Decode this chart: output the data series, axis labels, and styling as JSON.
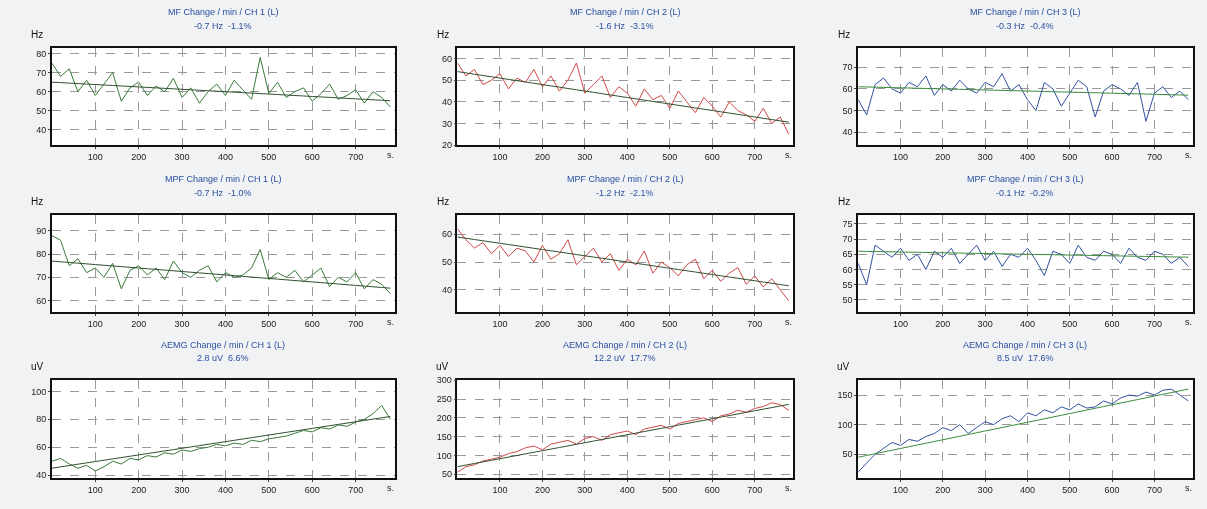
{
  "chart_data": [
    {
      "type": "line",
      "title": "MF Change / min / CH 1 (L)",
      "subtitle": "-0.7 Hz  -1.1%",
      "ylabel": "Hz",
      "xlabel": "s.",
      "x": [
        0,
        20,
        40,
        60,
        80,
        100,
        120,
        140,
        160,
        180,
        200,
        220,
        240,
        260,
        280,
        300,
        320,
        340,
        360,
        380,
        400,
        420,
        440,
        460,
        480,
        500,
        520,
        540,
        560,
        580,
        600,
        620,
        640,
        660,
        680,
        700,
        720,
        740,
        760,
        780
      ],
      "series": [
        {
          "color": "#3a7a3a",
          "values": [
            75,
            68,
            72,
            60,
            66,
            58,
            64,
            70,
            55,
            62,
            65,
            58,
            63,
            60,
            67,
            57,
            62,
            54,
            60,
            64,
            58,
            66,
            61,
            56,
            78,
            59,
            65,
            57,
            60,
            62,
            55,
            59,
            64,
            56,
            58,
            61,
            54,
            60,
            57,
            52
          ]
        },
        {
          "type": "line",
          "color": "#2f4f2f",
          "values": [
            65,
            64.75,
            64.5,
            64.25,
            64,
            63.75,
            63.5,
            63.25,
            63,
            62.75,
            62.5,
            62.25,
            62,
            61.75,
            61.5,
            61.25,
            61,
            60.75,
            60.5,
            60.25,
            60,
            59.75,
            59.5,
            59.25,
            59,
            58.75,
            58.5,
            58.25,
            58,
            57.75,
            57.5,
            57.25,
            57,
            56.75,
            56.5,
            56.25,
            56,
            55.75,
            55.5,
            55.25
          ]
        }
      ],
      "xlim": [
        0,
        790
      ],
      "xticks": [
        100,
        200,
        300,
        400,
        500,
        600,
        700
      ],
      "ylim": [
        32,
        83
      ],
      "yticks": [
        40,
        50,
        60,
        70,
        80
      ],
      "grid": true
    },
    {
      "type": "line",
      "title": "MF Change / min / CH 2 (L)",
      "subtitle": "-1.6 Hz  -3.1%",
      "ylabel": "Hz",
      "xlabel": "s.",
      "x": [
        0,
        20,
        40,
        60,
        80,
        100,
        120,
        140,
        160,
        180,
        200,
        220,
        240,
        260,
        280,
        300,
        320,
        340,
        360,
        380,
        400,
        420,
        440,
        460,
        480,
        500,
        520,
        540,
        560,
        580,
        600,
        620,
        640,
        660,
        680,
        700,
        720,
        740,
        760,
        780
      ],
      "series": [
        {
          "color": "#d04848",
          "values": [
            58,
            52,
            55,
            48,
            50,
            53,
            46,
            51,
            49,
            55,
            47,
            52,
            45,
            50,
            58,
            44,
            48,
            52,
            42,
            47,
            44,
            38,
            46,
            41,
            43,
            37,
            45,
            40,
            35,
            42,
            38,
            33,
            40,
            36,
            34,
            31,
            37,
            30,
            33,
            25
          ]
        },
        {
          "type": "line",
          "color": "#2f4f2f",
          "values": [
            54,
            53.4,
            52.8,
            52.2,
            51.6,
            51,
            50.4,
            49.8,
            49.2,
            48.6,
            48,
            47.4,
            46.8,
            46.2,
            45.6,
            45,
            44.4,
            43.8,
            43.2,
            42.6,
            42,
            41.4,
            40.8,
            40.2,
            39.6,
            39,
            38.4,
            37.8,
            37.2,
            36.6,
            36,
            35.4,
            34.8,
            34.2,
            33.6,
            33,
            32.4,
            31.8,
            31.2,
            30.6
          ]
        }
      ],
      "xlim": [
        0,
        790
      ],
      "xticks": [
        100,
        200,
        300,
        400,
        500,
        600,
        700
      ],
      "ylim": [
        20,
        65
      ],
      "yticks": [
        20,
        30,
        40,
        50,
        60
      ],
      "grid": true
    },
    {
      "type": "line",
      "title": "MF Change / min / CH 3 (L)",
      "subtitle": "-0.3 Hz  -0.4%",
      "ylabel": "Hz",
      "xlabel": "s.",
      "x": [
        0,
        20,
        40,
        60,
        80,
        100,
        120,
        140,
        160,
        180,
        200,
        220,
        240,
        260,
        280,
        300,
        320,
        340,
        360,
        380,
        400,
        420,
        440,
        460,
        480,
        500,
        520,
        540,
        560,
        580,
        600,
        620,
        640,
        660,
        680,
        700,
        720,
        740,
        760,
        780
      ],
      "series": [
        {
          "color": "#3050a0",
          "values": [
            55,
            48,
            62,
            65,
            60,
            58,
            63,
            61,
            66,
            57,
            62,
            59,
            64,
            60,
            58,
            63,
            61,
            67,
            59,
            62,
            55,
            50,
            63,
            60,
            52,
            58,
            64,
            61,
            47,
            59,
            62,
            60,
            57,
            63,
            45,
            58,
            61,
            56,
            59,
            55
          ]
        },
        {
          "type": "line",
          "color": "#3a8a3a",
          "values": [
            61,
            60.9,
            60.8,
            60.7,
            60.6,
            60.5,
            60.4,
            60.3,
            60.2,
            60.1,
            60,
            59.9,
            59.8,
            59.7,
            59.6,
            59.5,
            59.4,
            59.3,
            59.2,
            59.1,
            59,
            58.9,
            58.8,
            58.7,
            58.6,
            58.5,
            58.4,
            58.3,
            58.2,
            58.1,
            58,
            57.9,
            57.8,
            57.7,
            57.6,
            57.5,
            57.4,
            57.3,
            57.2,
            57.1
          ]
        }
      ],
      "xlim": [
        0,
        790
      ],
      "xticks": [
        100,
        200,
        300,
        400,
        500,
        600,
        700
      ],
      "ylim": [
        34,
        79
      ],
      "yticks": [
        40,
        50,
        60,
        70
      ],
      "grid": true
    },
    {
      "type": "line",
      "title": "MPF Change / min / CH 1 (L)",
      "subtitle": "-0.7 Hz  -1.0%",
      "ylabel": "Hz",
      "xlabel": "s.",
      "x": [
        0,
        20,
        40,
        60,
        80,
        100,
        120,
        140,
        160,
        180,
        200,
        220,
        240,
        260,
        280,
        300,
        320,
        340,
        360,
        380,
        400,
        420,
        440,
        460,
        480,
        500,
        520,
        540,
        560,
        580,
        600,
        620,
        640,
        660,
        680,
        700,
        720,
        740,
        760,
        780
      ],
      "series": [
        {
          "color": "#3a7a3a",
          "values": [
            88,
            86,
            75,
            78,
            72,
            74,
            70,
            76,
            65,
            73,
            75,
            71,
            74,
            69,
            77,
            72,
            70,
            73,
            75,
            68,
            72,
            70,
            71,
            74,
            82,
            69,
            72,
            70,
            73,
            68,
            71,
            74,
            66,
            70,
            68,
            72,
            65,
            69,
            67,
            63
          ]
        },
        {
          "type": "line",
          "color": "#2f4f2f",
          "values": [
            77,
            76.7,
            76.4,
            76.1,
            75.8,
            75.5,
            75.2,
            74.9,
            74.6,
            74.3,
            74,
            73.7,
            73.4,
            73.1,
            72.8,
            72.5,
            72.2,
            71.9,
            71.6,
            71.3,
            71,
            70.7,
            70.4,
            70.1,
            69.8,
            69.5,
            69.2,
            68.9,
            68.6,
            68.3,
            68,
            67.7,
            67.4,
            67.1,
            66.8,
            66.5,
            66.2,
            65.9,
            65.6,
            65.3
          ]
        }
      ],
      "xlim": [
        0,
        790
      ],
      "xticks": [
        100,
        200,
        300,
        400,
        500,
        600,
        700
      ],
      "ylim": [
        55,
        97
      ],
      "yticks": [
        60,
        70,
        80,
        90
      ],
      "grid": true
    },
    {
      "type": "line",
      "title": "MPF Change / min / CH 2 (L)",
      "subtitle": "-1.2 Hz  -2.1%",
      "ylabel": "Hz",
      "xlabel": "s.",
      "x": [
        0,
        20,
        40,
        60,
        80,
        100,
        120,
        140,
        160,
        180,
        200,
        220,
        240,
        260,
        280,
        300,
        320,
        340,
        360,
        380,
        400,
        420,
        440,
        460,
        480,
        500,
        520,
        540,
        560,
        580,
        600,
        620,
        640,
        660,
        680,
        700,
        720,
        740,
        760,
        780
      ],
      "series": [
        {
          "color": "#d04848",
          "values": [
            62,
            58,
            55,
            57,
            53,
            56,
            52,
            55,
            54,
            50,
            56,
            51,
            53,
            58,
            49,
            52,
            55,
            50,
            53,
            47,
            51,
            49,
            54,
            46,
            50,
            48,
            45,
            49,
            51,
            44,
            47,
            43,
            46,
            48,
            42,
            45,
            41,
            44,
            40,
            36
          ]
        },
        {
          "type": "line",
          "color": "#2f4f2f",
          "values": [
            59,
            58.55,
            58.1,
            57.65,
            57.2,
            56.75,
            56.3,
            55.85,
            55.4,
            54.95,
            54.5,
            54.05,
            53.6,
            53.15,
            52.7,
            52.25,
            51.8,
            51.35,
            50.9,
            50.45,
            50,
            49.55,
            49.1,
            48.65,
            48.2,
            47.75,
            47.3,
            46.85,
            46.4,
            45.95,
            45.5,
            45.05,
            44.6,
            44.15,
            43.7,
            43.25,
            42.8,
            42.35,
            41.9,
            41.45
          ]
        }
      ],
      "xlim": [
        0,
        790
      ],
      "xticks": [
        100,
        200,
        300,
        400,
        500,
        600,
        700
      ],
      "ylim": [
        32,
        67
      ],
      "yticks": [
        40,
        50,
        60
      ],
      "grid": true
    },
    {
      "type": "line",
      "title": "MPF Change / min / CH 3 (L)",
      "subtitle": "-0.1 Hz  -0.2%",
      "ylabel": "Hz",
      "xlabel": "s.",
      "x": [
        0,
        20,
        40,
        60,
        80,
        100,
        120,
        140,
        160,
        180,
        200,
        220,
        240,
        260,
        280,
        300,
        320,
        340,
        360,
        380,
        400,
        420,
        440,
        460,
        480,
        500,
        520,
        540,
        560,
        580,
        600,
        620,
        640,
        660,
        680,
        700,
        720,
        740,
        760,
        780
      ],
      "series": [
        {
          "color": "#3050a0",
          "values": [
            62,
            55,
            68,
            66,
            64,
            67,
            63,
            65,
            60,
            66,
            64,
            67,
            62,
            65,
            68,
            63,
            66,
            61,
            65,
            64,
            67,
            63,
            58,
            66,
            65,
            62,
            68,
            64,
            63,
            66,
            65,
            62,
            67,
            64,
            63,
            66,
            65,
            62,
            64,
            61
          ]
        },
        {
          "type": "line",
          "color": "#3a8a3a",
          "values": [
            66,
            65.95,
            65.9,
            65.85,
            65.8,
            65.75,
            65.7,
            65.65,
            65.6,
            65.55,
            65.5,
            65.45,
            65.4,
            65.35,
            65.3,
            65.25,
            65.2,
            65.15,
            65.1,
            65.05,
            65,
            64.95,
            64.9,
            64.85,
            64.8,
            64.75,
            64.7,
            64.65,
            64.6,
            64.55,
            64.5,
            64.45,
            64.4,
            64.35,
            64.3,
            64.25,
            64.2,
            64.15,
            64.1,
            64.05
          ]
        }
      ],
      "xlim": [
        0,
        790
      ],
      "xticks": [
        100,
        200,
        300,
        400,
        500,
        600,
        700
      ],
      "ylim": [
        46,
        78
      ],
      "yticks": [
        50,
        55,
        60,
        65,
        70,
        75
      ],
      "grid": true
    },
    {
      "type": "line",
      "title": "AEMG Change / min / CH 1 (L)",
      "subtitle": "2.8 uV  6.6%",
      "ylabel": "uV",
      "xlabel": "s.",
      "x": [
        0,
        20,
        40,
        60,
        80,
        100,
        120,
        140,
        160,
        180,
        200,
        220,
        240,
        260,
        280,
        300,
        320,
        340,
        360,
        380,
        400,
        420,
        440,
        460,
        480,
        500,
        520,
        540,
        560,
        580,
        600,
        620,
        640,
        660,
        680,
        700,
        720,
        740,
        760,
        780
      ],
      "series": [
        {
          "color": "#3a7a3a",
          "values": [
            50,
            52,
            48,
            45,
            47,
            43,
            46,
            50,
            48,
            52,
            51,
            54,
            53,
            56,
            55,
            58,
            57,
            59,
            60,
            62,
            61,
            63,
            62,
            65,
            64,
            66,
            67,
            68,
            70,
            72,
            71,
            74,
            73,
            76,
            75,
            78,
            80,
            84,
            90,
            80
          ]
        },
        {
          "type": "line",
          "color": "#2f4f2f",
          "values": [
            45,
            45.95,
            46.9,
            47.85,
            48.8,
            49.75,
            50.7,
            51.65,
            52.6,
            53.55,
            54.5,
            55.45,
            56.4,
            57.35,
            58.3,
            59.25,
            60.2,
            61.15,
            62.1,
            63.05,
            64,
            64.95,
            65.9,
            66.85,
            67.8,
            68.75,
            69.7,
            70.65,
            71.6,
            72.55,
            73.5,
            74.45,
            75.4,
            76.35,
            77.3,
            78.25,
            79.2,
            80.15,
            81.1,
            82.05
          ]
        }
      ],
      "xlim": [
        0,
        790
      ],
      "xticks": [
        100,
        200,
        300,
        400,
        500,
        600,
        700
      ],
      "ylim": [
        38,
        108
      ],
      "yticks": [
        40,
        60,
        80,
        100
      ],
      "grid": true
    },
    {
      "type": "line",
      "title": "AEMG Change / min / CH 2 (L)",
      "subtitle": "12.2 uV  17.7%",
      "ylabel": "uV",
      "xlabel": "s.",
      "x": [
        0,
        20,
        40,
        60,
        80,
        100,
        120,
        140,
        160,
        180,
        200,
        220,
        240,
        260,
        280,
        300,
        320,
        340,
        360,
        380,
        400,
        420,
        440,
        460,
        480,
        500,
        520,
        540,
        560,
        580,
        600,
        620,
        640,
        660,
        680,
        700,
        720,
        740,
        760,
        780
      ],
      "series": [
        {
          "color": "#d04848",
          "values": [
            55,
            70,
            75,
            85,
            90,
            95,
            105,
            110,
            120,
            125,
            115,
            130,
            135,
            140,
            130,
            145,
            150,
            140,
            155,
            160,
            165,
            155,
            170,
            175,
            180,
            170,
            185,
            190,
            195,
            200,
            190,
            205,
            210,
            220,
            215,
            225,
            230,
            240,
            235,
            220
          ]
        },
        {
          "type": "line",
          "color": "#2f4f2f",
          "values": [
            70,
            74.25,
            78.5,
            82.75,
            87,
            91.25,
            95.5,
            99.75,
            104,
            108.25,
            112.5,
            116.75,
            121,
            125.25,
            129.5,
            133.75,
            138,
            142.25,
            146.5,
            150.75,
            155,
            159.25,
            163.5,
            167.75,
            172,
            176.25,
            180.5,
            184.75,
            189,
            193.25,
            197.5,
            201.75,
            206,
            210.25,
            214.5,
            218.75,
            223,
            227.25,
            231.5,
            235.75
          ]
        }
      ],
      "xlim": [
        0,
        790
      ],
      "xticks": [
        100,
        200,
        300,
        400,
        500,
        600,
        700
      ],
      "ylim": [
        40,
        300
      ],
      "yticks": [
        50,
        100,
        150,
        200,
        250,
        300
      ],
      "grid": true
    },
    {
      "type": "line",
      "title": "AEMG Change / min / CH 3 (L)",
      "subtitle": "8.5 uV  17.6%",
      "ylabel": "uV",
      "xlabel": "s.",
      "x": [
        0,
        20,
        40,
        60,
        80,
        100,
        120,
        140,
        160,
        180,
        200,
        220,
        240,
        260,
        280,
        300,
        320,
        340,
        360,
        380,
        400,
        420,
        440,
        460,
        480,
        500,
        520,
        540,
        560,
        580,
        600,
        620,
        640,
        660,
        680,
        700,
        720,
        740,
        760,
        780
      ],
      "series": [
        {
          "color": "#3050a0",
          "values": [
            20,
            35,
            50,
            60,
            70,
            65,
            75,
            72,
            80,
            85,
            95,
            90,
            100,
            85,
            95,
            105,
            100,
            110,
            115,
            105,
            120,
            115,
            125,
            120,
            130,
            125,
            135,
            128,
            130,
            140,
            135,
            145,
            150,
            148,
            155,
            150,
            158,
            160,
            150,
            140
          ]
        },
        {
          "type": "line",
          "color": "#3a8a3a",
          "values": [
            45,
            47.95,
            50.9,
            53.85,
            56.8,
            59.75,
            62.7,
            65.65,
            68.6,
            71.55,
            74.5,
            77.45,
            80.4,
            83.35,
            86.3,
            89.25,
            92.2,
            95.15,
            98.1,
            101.05,
            104,
            106.95,
            109.9,
            112.85,
            115.8,
            118.75,
            121.7,
            124.65,
            127.6,
            130.55,
            133.5,
            136.45,
            139.4,
            142.35,
            145.3,
            148.25,
            151.2,
            154.15,
            157.1,
            160.05
          ]
        }
      ],
      "xlim": [
        0,
        790
      ],
      "xticks": [
        100,
        200,
        300,
        400,
        500,
        600,
        700
      ],
      "ylim": [
        10,
        175
      ],
      "yticks": [
        50,
        100,
        150
      ],
      "grid": true
    }
  ]
}
